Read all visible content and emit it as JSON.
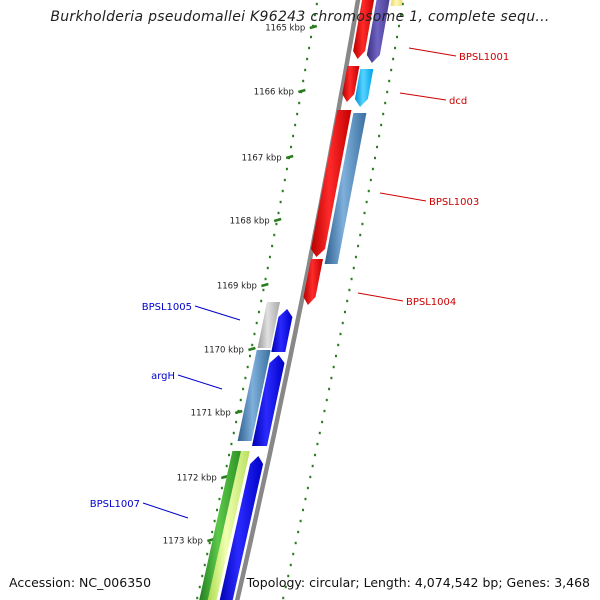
{
  "title": "Burkholderia pseudomallei K96243 chromosome 1, complete sequ...",
  "footer": {
    "accession": "Accession: NC_006350",
    "topology": "Topology: circular; Length: 4,074,542 bp; Genes: 3,468"
  },
  "colors": {
    "backbone": "#888888",
    "ticks": "#2a7d1e",
    "tick_label": "#222222",
    "label_forward": "#cc0000",
    "label_reverse": "#0000cc"
  },
  "ticks": [
    {
      "label": "1165 kbp"
    },
    {
      "label": "1166 kbp"
    },
    {
      "label": "1167 kbp"
    },
    {
      "label": "1168 kbp"
    },
    {
      "label": "1169 kbp"
    },
    {
      "label": "1170 kbp"
    },
    {
      "label": "1171 kbp"
    },
    {
      "label": "1172 kbp"
    },
    {
      "label": "1173 kbp"
    }
  ],
  "gene_labels": [
    {
      "name": "BPSL1001",
      "strand": "forward"
    },
    {
      "name": "dcd",
      "strand": "forward"
    },
    {
      "name": "BPSL1003",
      "strand": "forward"
    },
    {
      "name": "BPSL1004",
      "strand": "forward"
    },
    {
      "name": "BPSL1005",
      "strand": "reverse"
    },
    {
      "name": "argH",
      "strand": "reverse"
    },
    {
      "name": "BPSL1007",
      "strand": "reverse"
    }
  ]
}
